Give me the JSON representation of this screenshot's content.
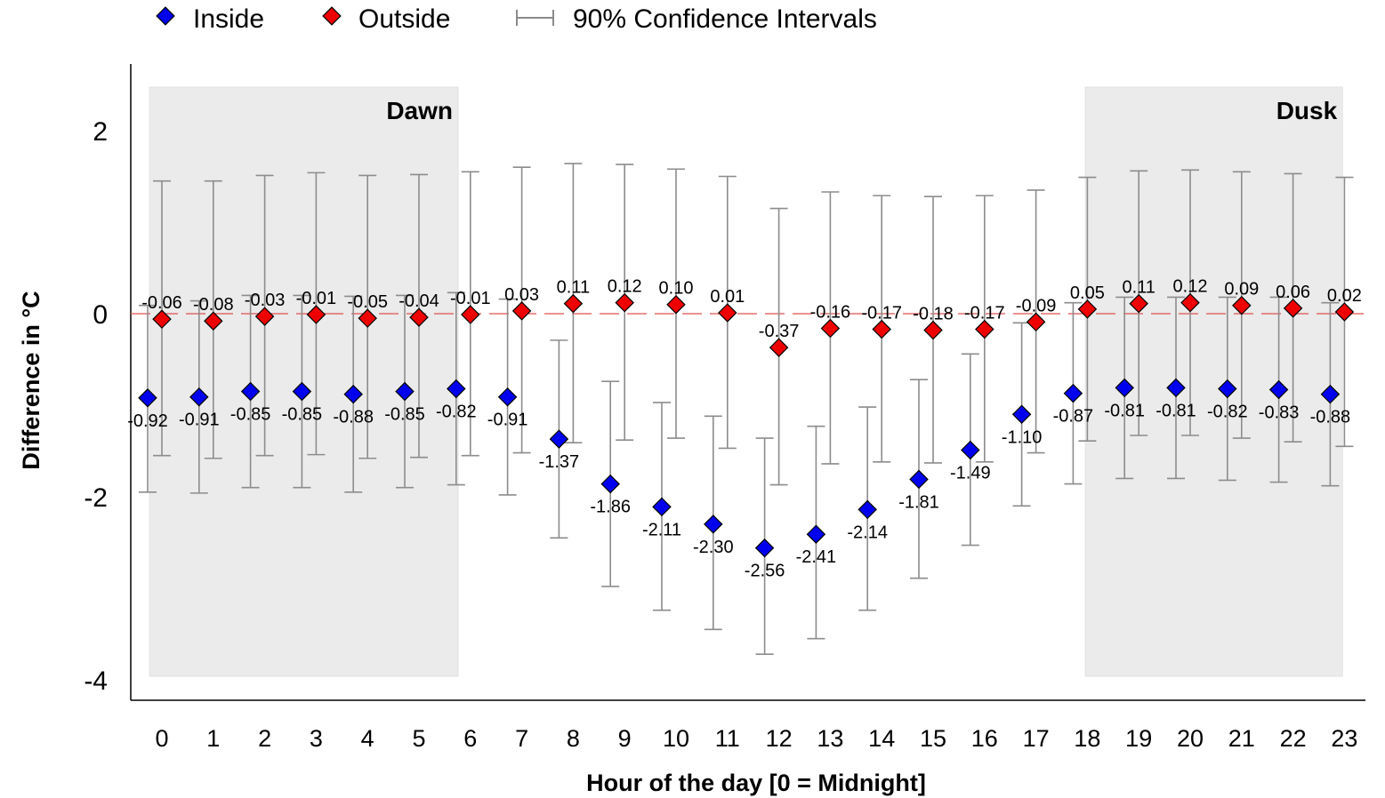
{
  "chart_data": {
    "type": "scatter",
    "xlabel": "Hour of the day [0 = Midnight]",
    "ylabel": "Difference in °C",
    "x": [
      0,
      1,
      2,
      3,
      4,
      5,
      6,
      7,
      8,
      9,
      10,
      11,
      12,
      13,
      14,
      15,
      16,
      17,
      18,
      19,
      20,
      21,
      22,
      23
    ],
    "x_tick_labels": [
      "0",
      "1",
      "2",
      "3",
      "4",
      "5",
      "6",
      "7",
      "8",
      "9",
      "10",
      "11",
      "12",
      "13",
      "14",
      "15",
      "16",
      "17",
      "18",
      "19",
      "20",
      "21",
      "22",
      "23"
    ],
    "y_ticks": [
      2,
      0,
      -2,
      -4
    ],
    "y_tick_labels": [
      "2",
      "0",
      "-2",
      "-4"
    ],
    "ylim": [
      -4.3,
      2.7
    ],
    "reference_line": 0,
    "grid": false,
    "legend_position": "top",
    "legend": {
      "inside": "Inside",
      "outside": "Outside",
      "ci": "90% Confidence Intervals"
    },
    "shaded_regions": [
      {
        "label": "Dawn",
        "x_from": -0.1,
        "x_to": 5.9
      },
      {
        "label": "Dusk",
        "x_from": 18.1,
        "x_to": 23.1
      }
    ],
    "series": [
      {
        "name": "Inside",
        "color": "#0000ee",
        "values": [
          -0.92,
          -0.91,
          -0.85,
          -0.85,
          -0.88,
          -0.85,
          -0.82,
          -0.91,
          -1.37,
          -1.86,
          -2.11,
          -2.3,
          -2.56,
          -2.41,
          -2.14,
          -1.81,
          -1.49,
          -1.1,
          -0.87,
          -0.81,
          -0.81,
          -0.82,
          -0.83,
          -0.88
        ],
        "labels": [
          "-0.92",
          "-0.91",
          "-0.85",
          "-0.85",
          "-0.88",
          "-0.85",
          "-0.82",
          "-0.91",
          "-1.37",
          "-1.86",
          "-2.11",
          "-2.30",
          "-2.56",
          "-2.41",
          "-2.14",
          "-1.81",
          "-1.49",
          "-1.10",
          "-0.87",
          "-0.81",
          "-0.81",
          "-0.82",
          "-0.83",
          "-0.88"
        ],
        "ci_low": [
          -1.95,
          -1.96,
          -1.9,
          -1.9,
          -1.95,
          -1.9,
          -1.87,
          -1.98,
          -2.45,
          -2.98,
          -3.24,
          -3.45,
          -3.72,
          -3.55,
          -3.24,
          -2.89,
          -2.53,
          -2.1,
          -1.86,
          -1.8,
          -1.8,
          -1.82,
          -1.84,
          -1.88
        ],
        "ci_high": [
          0.09,
          0.14,
          0.2,
          0.2,
          0.19,
          0.2,
          0.23,
          0.16,
          -0.29,
          -0.74,
          -0.97,
          -1.12,
          -1.36,
          -1.23,
          -1.02,
          -0.72,
          -0.44,
          -0.1,
          0.12,
          0.18,
          0.18,
          0.18,
          0.18,
          0.12
        ]
      },
      {
        "name": "Outside",
        "color": "#ee0000",
        "values": [
          -0.06,
          -0.08,
          -0.03,
          -0.01,
          -0.05,
          -0.04,
          -0.01,
          0.03,
          0.11,
          0.12,
          0.1,
          0.01,
          -0.37,
          -0.16,
          -0.17,
          -0.18,
          -0.17,
          -0.09,
          0.05,
          0.11,
          0.12,
          0.09,
          0.06,
          0.02
        ],
        "labels": [
          "-0.06",
          "-0.08",
          "-0.03",
          "-0.01",
          "-0.05",
          "-0.04",
          "-0.01",
          "0.03",
          "0.11",
          "0.12",
          "0.10",
          "0.01",
          "-0.37",
          "-0.16",
          "-0.17",
          "-0.18",
          "-0.17",
          "-0.09",
          "0.05",
          "0.11",
          "0.12",
          "0.09",
          "0.06",
          "0.02"
        ],
        "ci_low": [
          -1.55,
          -1.58,
          -1.55,
          -1.54,
          -1.58,
          -1.57,
          -1.55,
          -1.52,
          -1.41,
          -1.38,
          -1.36,
          -1.47,
          -1.87,
          -1.64,
          -1.62,
          -1.63,
          -1.62,
          -1.52,
          -1.39,
          -1.33,
          -1.33,
          -1.36,
          -1.4,
          -1.45
        ],
        "ci_high": [
          1.45,
          1.45,
          1.51,
          1.54,
          1.51,
          1.52,
          1.55,
          1.6,
          1.64,
          1.63,
          1.58,
          1.5,
          1.15,
          1.33,
          1.29,
          1.28,
          1.29,
          1.35,
          1.49,
          1.56,
          1.57,
          1.55,
          1.53,
          1.49
        ]
      }
    ]
  }
}
